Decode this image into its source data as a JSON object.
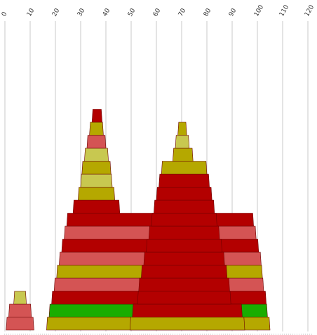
{
  "chart_data": {
    "type": "area",
    "subtype": "stacked stepped pyramid profiles",
    "title": "",
    "xlabel": "",
    "ylabel": "",
    "xlim": [
      0,
      120
    ],
    "x_ticks": [
      0,
      10,
      20,
      30,
      40,
      50,
      60,
      70,
      80,
      90,
      100,
      110,
      120
    ],
    "grid": "vertical",
    "legend": "none",
    "colors": {
      "dark_red": "#b30000",
      "light_red": "#d45454",
      "olive": "#b5a800",
      "light_olive": "#c8c850",
      "green": "#1aad00",
      "grid": "#c8c8c8"
    },
    "groups": [
      {
        "layers": [
          {
            "x0": 0.5,
            "x1": 11.5,
            "color": "light_red"
          },
          {
            "x0": 1.5,
            "x1": 10.5,
            "color": "light_red"
          },
          {
            "x0": 3.5,
            "x1": 8.5,
            "color": "light_olive"
          }
        ]
      },
      {
        "layers": [
          {
            "x0": 16.5,
            "x1": 105,
            "color": "olive"
          },
          {
            "x0": 17.5,
            "x1": 104,
            "color": "green"
          },
          {
            "x0": 18.5,
            "x1": 103.5,
            "color": "dark_red"
          },
          {
            "x0": 19.5,
            "x1": 102.5,
            "color": "light_red"
          },
          {
            "x0": 20.5,
            "x1": 102,
            "color": "olive"
          },
          {
            "x0": 21.5,
            "x1": 101.5,
            "color": "light_red"
          },
          {
            "x0": 22.5,
            "x1": 100.5,
            "color": "dark_red"
          },
          {
            "x0": 23.5,
            "x1": 99.5,
            "color": "light_red"
          },
          {
            "x0": 24.5,
            "x1": 98.5,
            "color": "dark_red"
          },
          {
            "x0": 27,
            "x1": 45.5,
            "color": "dark_red"
          },
          {
            "x0": 29,
            "x1": 43.5,
            "color": "olive"
          },
          {
            "x0": 30,
            "x1": 42.5,
            "color": "light_olive"
          },
          {
            "x0": 30.5,
            "x1": 42,
            "color": "olive"
          },
          {
            "x0": 31.5,
            "x1": 41,
            "color": "light_olive"
          },
          {
            "x0": 32.5,
            "x1": 40,
            "color": "light_red"
          },
          {
            "x0": 33.5,
            "x1": 39,
            "color": "olive"
          },
          {
            "x0": 34.5,
            "x1": 38.5,
            "color": "dark_red"
          }
        ]
      },
      {
        "layers": [
          {
            "x0": 49.5,
            "x1": 95,
            "color": "olive"
          },
          {
            "x0": 50.5,
            "x1": 94,
            "color": "dark_red"
          },
          {
            "x0": 52.5,
            "x1": 89.5,
            "color": "dark_red"
          },
          {
            "x0": 53,
            "x1": 89,
            "color": "dark_red"
          },
          {
            "x0": 54,
            "x1": 88,
            "color": "dark_red"
          },
          {
            "x0": 55,
            "x1": 87,
            "color": "dark_red"
          },
          {
            "x0": 56,
            "x1": 86,
            "color": "dark_red"
          },
          {
            "x0": 57,
            "x1": 85,
            "color": "dark_red"
          },
          {
            "x0": 58,
            "x1": 84,
            "color": "dark_red"
          },
          {
            "x0": 59,
            "x1": 83,
            "color": "dark_red"
          },
          {
            "x0": 60,
            "x1": 82,
            "color": "dark_red"
          },
          {
            "x0": 61,
            "x1": 81,
            "color": "dark_red"
          },
          {
            "x0": 62,
            "x1": 80,
            "color": "olive"
          },
          {
            "x0": 66.5,
            "x1": 74.5,
            "color": "olive"
          },
          {
            "x0": 67.5,
            "x1": 73,
            "color": "light_olive"
          },
          {
            "x0": 68.5,
            "x1": 72,
            "color": "olive"
          }
        ]
      }
    ]
  }
}
